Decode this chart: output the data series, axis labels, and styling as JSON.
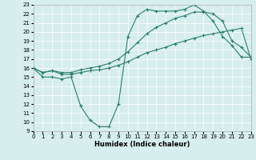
{
  "xlabel": "Humidex (Indice chaleur)",
  "bg_color": "#d6eeed",
  "line_color": "#2e7d70",
  "xlim": [
    0,
    23
  ],
  "ylim": [
    9,
    23
  ],
  "x_ticks": [
    0,
    1,
    2,
    3,
    4,
    5,
    6,
    7,
    8,
    9,
    10,
    11,
    12,
    13,
    14,
    15,
    16,
    17,
    18,
    19,
    20,
    21,
    22,
    23
  ],
  "y_ticks": [
    9,
    10,
    11,
    12,
    13,
    14,
    15,
    16,
    17,
    18,
    19,
    20,
    21,
    22,
    23
  ],
  "line1_x": [
    0,
    1,
    2,
    3,
    4,
    5,
    6,
    7,
    8,
    9,
    10,
    11,
    12,
    13,
    14,
    15,
    16,
    17,
    18,
    19,
    20,
    21,
    22,
    23
  ],
  "line1_y": [
    16,
    15,
    15,
    14.8,
    15,
    11.8,
    10.2,
    9.5,
    9.5,
    12,
    19.5,
    21.8,
    22.5,
    22.3,
    22.3,
    22.3,
    22.5,
    23.0,
    22.3,
    21.2,
    19.5,
    18.5,
    17.2,
    17.2
  ],
  "line2_x": [
    0,
    1,
    2,
    3,
    4,
    5,
    6,
    7,
    8,
    9,
    10,
    11,
    12,
    13,
    14,
    15,
    16,
    17,
    18,
    19,
    20,
    21,
    22,
    23
  ],
  "line2_y": [
    16,
    15.5,
    15.7,
    15.3,
    15.3,
    15.5,
    15.7,
    15.8,
    16.0,
    16.3,
    16.7,
    17.2,
    17.7,
    18.0,
    18.3,
    18.7,
    19.0,
    19.3,
    19.6,
    19.8,
    20.0,
    20.2,
    20.4,
    17.0
  ],
  "line3_x": [
    0,
    1,
    2,
    3,
    4,
    5,
    6,
    7,
    8,
    9,
    10,
    11,
    12,
    13,
    14,
    15,
    16,
    17,
    18,
    19,
    20,
    21,
    22,
    23
  ],
  "line3_y": [
    16,
    15.5,
    15.7,
    15.5,
    15.5,
    15.8,
    16.0,
    16.2,
    16.5,
    17.0,
    17.8,
    18.8,
    19.8,
    20.5,
    21.0,
    21.5,
    21.8,
    22.2,
    22.2,
    22.0,
    21.2,
    19.0,
    18.3,
    17.2
  ]
}
